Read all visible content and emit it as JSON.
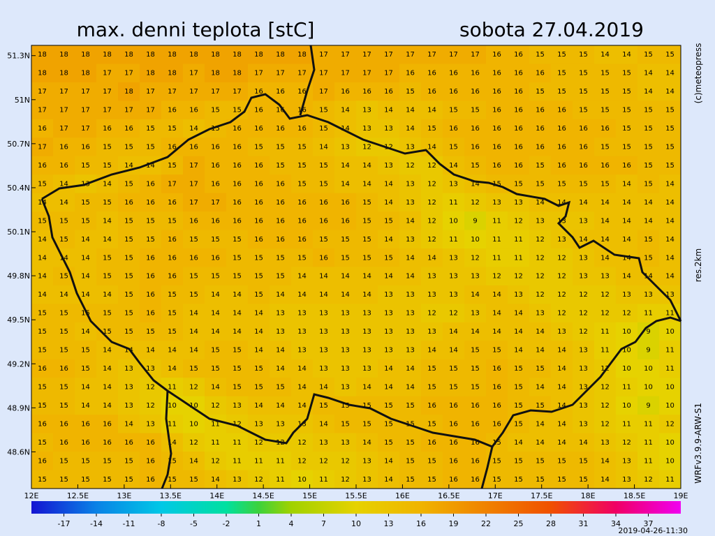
{
  "title": "max. denni teplota [stC]",
  "date": "sobota 27.04.2019",
  "credit": "(c)meteopress",
  "resolution": "res.2km",
  "model": "WRFv3.9.9-ARW-S1",
  "issued": "2019-04-26-11:30",
  "map": {
    "lon_range": [
      12,
      19.0
    ],
    "lat_range": [
      48.35,
      51.37
    ],
    "lon_ticks": [
      {
        "value": 12,
        "label": "12E"
      },
      {
        "value": 12.5,
        "label": "12.5E"
      },
      {
        "value": 13,
        "label": "13E"
      },
      {
        "value": 13.5,
        "label": "13.5E"
      },
      {
        "value": 14,
        "label": "14E"
      },
      {
        "value": 14.5,
        "label": "14.5E"
      },
      {
        "value": 15,
        "label": "15E"
      },
      {
        "value": 15.5,
        "label": "15.5E"
      },
      {
        "value": 16,
        "label": "16E"
      },
      {
        "value": 16.5,
        "label": "16.5E"
      },
      {
        "value": 17,
        "label": "17E"
      },
      {
        "value": 17.5,
        "label": "17.5E"
      },
      {
        "value": 18,
        "label": "18E"
      },
      {
        "value": 18.5,
        "label": "18.5E"
      },
      {
        "value": 19,
        "label": "19E"
      }
    ],
    "lat_ticks": [
      {
        "value": 51.3,
        "label": "51.3N"
      },
      {
        "value": 51,
        "label": "51N"
      },
      {
        "value": 50.7,
        "label": "50.7N"
      },
      {
        "value": 50.4,
        "label": "50.4N"
      },
      {
        "value": 50.1,
        "label": "50.1N"
      },
      {
        "value": 49.8,
        "label": "49.8N"
      },
      {
        "value": 49.5,
        "label": "49.5N"
      },
      {
        "value": 49.2,
        "label": "49.2N"
      },
      {
        "value": 48.9,
        "label": "48.9N"
      },
      {
        "value": 48.6,
        "label": "48.6N"
      }
    ],
    "grid": [
      [
        18,
        18,
        18,
        18,
        18,
        18,
        18,
        18,
        18,
        18,
        18,
        18,
        18,
        17,
        17,
        17,
        17,
        17,
        17,
        17,
        17,
        16,
        16,
        15,
        15,
        15,
        14,
        14,
        15,
        15
      ],
      [
        18,
        18,
        18,
        17,
        17,
        18,
        18,
        17,
        18,
        18,
        17,
        17,
        17,
        17,
        17,
        17,
        17,
        16,
        16,
        16,
        16,
        16,
        16,
        16,
        15,
        15,
        15,
        15,
        14,
        14
      ],
      [
        17,
        17,
        17,
        17,
        18,
        17,
        17,
        17,
        17,
        17,
        16,
        16,
        16,
        17,
        16,
        16,
        16,
        15,
        16,
        16,
        16,
        16,
        16,
        15,
        15,
        15,
        15,
        15,
        14,
        14
      ],
      [
        17,
        17,
        17,
        17,
        17,
        17,
        16,
        16,
        15,
        15,
        16,
        16,
        16,
        15,
        14,
        13,
        14,
        14,
        14,
        15,
        15,
        16,
        16,
        16,
        16,
        15,
        15,
        15,
        15,
        15
      ],
      [
        16,
        17,
        17,
        16,
        16,
        15,
        15,
        14,
        15,
        16,
        16,
        16,
        16,
        15,
        14,
        13,
        13,
        14,
        15,
        16,
        16,
        16,
        16,
        16,
        16,
        16,
        16,
        15,
        15,
        15
      ],
      [
        17,
        16,
        16,
        15,
        15,
        15,
        16,
        16,
        16,
        16,
        15,
        15,
        15,
        14,
        13,
        12,
        12,
        13,
        14,
        15,
        16,
        16,
        16,
        16,
        16,
        16,
        15,
        15,
        15,
        15
      ],
      [
        16,
        16,
        15,
        15,
        14,
        14,
        15,
        17,
        16,
        16,
        16,
        15,
        15,
        15,
        14,
        14,
        13,
        12,
        12,
        14,
        15,
        16,
        16,
        15,
        16,
        16,
        16,
        16,
        15,
        15
      ],
      [
        15,
        14,
        13,
        14,
        15,
        16,
        17,
        17,
        16,
        16,
        16,
        16,
        15,
        15,
        14,
        14,
        14,
        13,
        12,
        13,
        14,
        15,
        15,
        15,
        15,
        15,
        15,
        14,
        15,
        14
      ],
      [
        14,
        14,
        15,
        15,
        16,
        16,
        16,
        17,
        17,
        16,
        16,
        16,
        16,
        16,
        16,
        15,
        14,
        13,
        12,
        11,
        12,
        13,
        13,
        14,
        14,
        14,
        14,
        14,
        14,
        14
      ],
      [
        15,
        15,
        15,
        14,
        15,
        15,
        15,
        16,
        16,
        16,
        16,
        16,
        16,
        16,
        16,
        15,
        15,
        14,
        12,
        10,
        9,
        11,
        12,
        13,
        13,
        13,
        14,
        14,
        14,
        14
      ],
      [
        14,
        15,
        14,
        14,
        15,
        15,
        16,
        15,
        15,
        15,
        16,
        16,
        16,
        15,
        15,
        15,
        14,
        13,
        12,
        11,
        10,
        11,
        11,
        12,
        13,
        14,
        14,
        14,
        15,
        14
      ],
      [
        14,
        14,
        14,
        15,
        15,
        16,
        16,
        16,
        16,
        15,
        15,
        15,
        15,
        16,
        15,
        15,
        15,
        14,
        14,
        13,
        12,
        11,
        11,
        12,
        12,
        13,
        14,
        14,
        15,
        14
      ],
      [
        14,
        15,
        14,
        15,
        15,
        16,
        16,
        15,
        15,
        15,
        15,
        15,
        14,
        14,
        14,
        14,
        14,
        14,
        13,
        13,
        13,
        12,
        12,
        12,
        12,
        13,
        13,
        14,
        14,
        14
      ],
      [
        14,
        14,
        14,
        14,
        15,
        16,
        15,
        15,
        14,
        14,
        15,
        14,
        14,
        14,
        14,
        14,
        13,
        13,
        13,
        13,
        14,
        14,
        13,
        12,
        12,
        12,
        12,
        13,
        13,
        13
      ],
      [
        15,
        15,
        15,
        15,
        15,
        16,
        15,
        14,
        14,
        14,
        14,
        13,
        13,
        13,
        13,
        13,
        13,
        13,
        12,
        12,
        13,
        14,
        14,
        13,
        12,
        12,
        12,
        12,
        11,
        11
      ],
      [
        15,
        15,
        14,
        15,
        15,
        15,
        15,
        14,
        14,
        14,
        14,
        13,
        13,
        13,
        13,
        13,
        13,
        13,
        13,
        14,
        14,
        14,
        14,
        14,
        13,
        12,
        11,
        10,
        9,
        10
      ],
      [
        15,
        15,
        15,
        14,
        14,
        14,
        14,
        14,
        15,
        15,
        14,
        14,
        13,
        13,
        13,
        13,
        13,
        13,
        14,
        14,
        15,
        15,
        14,
        14,
        14,
        13,
        11,
        10,
        9,
        11
      ],
      [
        16,
        16,
        15,
        14,
        13,
        13,
        14,
        15,
        15,
        15,
        15,
        14,
        14,
        13,
        13,
        13,
        14,
        14,
        15,
        15,
        15,
        16,
        15,
        15,
        14,
        13,
        12,
        10,
        10,
        11
      ],
      [
        15,
        15,
        14,
        14,
        13,
        12,
        11,
        12,
        14,
        15,
        15,
        15,
        14,
        14,
        13,
        14,
        14,
        14,
        15,
        15,
        15,
        16,
        15,
        14,
        14,
        13,
        12,
        11,
        10,
        10
      ],
      [
        15,
        15,
        14,
        14,
        13,
        12,
        10,
        10,
        12,
        13,
        14,
        14,
        14,
        15,
        15,
        15,
        15,
        15,
        16,
        16,
        16,
        16,
        15,
        15,
        14,
        13,
        12,
        10,
        9,
        10
      ],
      [
        16,
        16,
        16,
        16,
        14,
        13,
        11,
        10,
        11,
        12,
        13,
        13,
        13,
        14,
        15,
        15,
        15,
        15,
        15,
        16,
        16,
        16,
        15,
        14,
        14,
        13,
        12,
        11,
        11,
        12
      ],
      [
        15,
        16,
        16,
        16,
        16,
        16,
        14,
        12,
        11,
        11,
        12,
        12,
        12,
        13,
        13,
        14,
        15,
        15,
        16,
        16,
        16,
        15,
        14,
        14,
        14,
        14,
        13,
        12,
        11,
        10
      ],
      [
        16,
        15,
        15,
        15,
        15,
        16,
        15,
        14,
        12,
        11,
        11,
        11,
        12,
        12,
        12,
        13,
        14,
        15,
        15,
        16,
        16,
        15,
        15,
        15,
        15,
        15,
        14,
        13,
        11,
        10
      ],
      [
        15,
        15,
        15,
        15,
        15,
        16,
        15,
        15,
        14,
        13,
        12,
        11,
        10,
        11,
        12,
        13,
        14,
        15,
        15,
        16,
        16,
        15,
        15,
        15,
        15,
        15,
        14,
        13,
        12,
        11
      ]
    ]
  },
  "colorbar": {
    "range": [
      -20,
      40
    ],
    "ticks": [
      -17,
      -14,
      -11,
      -8,
      -5,
      -2,
      1,
      4,
      7,
      10,
      13,
      16,
      19,
      22,
      25,
      28,
      31,
      34,
      37
    ],
    "stops": [
      {
        "value": -20,
        "color": "#1414d2"
      },
      {
        "value": -14,
        "color": "#0a82e6"
      },
      {
        "value": -8,
        "color": "#00c8e6"
      },
      {
        "value": -2,
        "color": "#00e0a0"
      },
      {
        "value": 1,
        "color": "#3cd23c"
      },
      {
        "value": 4,
        "color": "#a0d200"
      },
      {
        "value": 10,
        "color": "#e6d200"
      },
      {
        "value": 16,
        "color": "#f0b400"
      },
      {
        "value": 22,
        "color": "#f08200"
      },
      {
        "value": 28,
        "color": "#f05000"
      },
      {
        "value": 34,
        "color": "#f00064"
      },
      {
        "value": 40,
        "color": "#f000f0"
      }
    ]
  }
}
